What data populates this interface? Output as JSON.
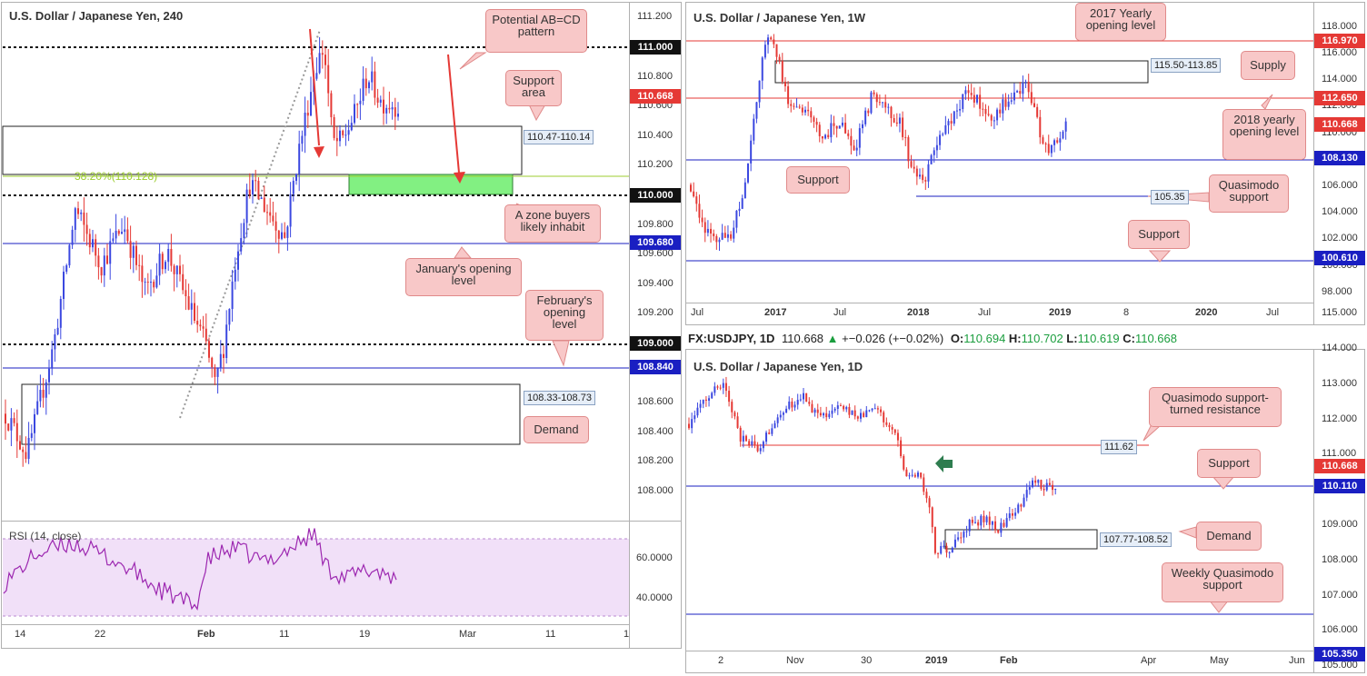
{
  "colors": {
    "bull": "#3b48e0",
    "bear": "#e53935",
    "level_red": "#e53935",
    "level_blue": "#1a1fc2",
    "level_black": "#111111",
    "fib": "#9ccc2f",
    "green_zone": "#82f082",
    "callout_fill": "#f8c8c8",
    "callout_stroke": "#e08a8a",
    "rsi_line": "#9c27b0",
    "rsi_band": "#f1e0f8",
    "up_tick": "#1b9e3e"
  },
  "panel_4h": {
    "title": "U.S. Dollar / Japanese Yen, 240",
    "y_ticks": [
      "111.200",
      "110.800",
      "110.600",
      "110.400",
      "110.200",
      "109.800",
      "109.600",
      "109.400",
      "109.200",
      "108.600",
      "108.400",
      "108.200",
      "108.000"
    ],
    "x_ticks": [
      "14",
      "22",
      "Feb",
      "11",
      "19",
      "Mar",
      "11",
      "1"
    ],
    "levels": [
      {
        "label": "111.000",
        "value": 111.0,
        "style": "dotted",
        "badge": "black"
      },
      {
        "label": "110.668",
        "value": 110.668,
        "style": "none",
        "badge": "red"
      },
      {
        "label": "110.000",
        "value": 110.0,
        "style": "dotted",
        "badge": "black"
      },
      {
        "label": "109.680",
        "value": 109.68,
        "style": "solid",
        "badge": "blue"
      },
      {
        "label": "109.000",
        "value": 109.0,
        "style": "dotted",
        "badge": "black"
      },
      {
        "label": "108.840",
        "value": 108.84,
        "style": "solid",
        "badge": "blue"
      }
    ],
    "fib_label": "38.20%(110.128)",
    "zones": [
      {
        "label": "110.47-110.14"
      },
      {
        "label": "108.33-108.73"
      }
    ],
    "callouts": [
      {
        "text": "Potential AB=CD pattern"
      },
      {
        "text": "Support area"
      },
      {
        "text": "A zone buyers likely inhabit"
      },
      {
        "text": "January's opening level"
      },
      {
        "text": "February's opening level"
      },
      {
        "text": "Demand"
      }
    ],
    "rsi": {
      "label": "RSI (14, close)",
      "ticks": [
        "60.0000",
        "40.0000"
      ]
    }
  },
  "panel_weekly": {
    "title": "U.S. Dollar / Japanese Yen, 1W",
    "y_ticks": [
      "118.000",
      "116.000",
      "114.000",
      "112.000",
      "110.000",
      "108.000",
      "106.000",
      "104.000",
      "102.000",
      "100.000",
      "98.000"
    ],
    "x_ticks": [
      "Jul",
      "2017",
      "Jul",
      "2018",
      "Jul",
      "2019",
      "8",
      "2020",
      "Jul"
    ],
    "levels": [
      {
        "label": "116.970",
        "value": 116.97,
        "color": "red"
      },
      {
        "label": "112.650",
        "value": 112.65,
        "color": "red"
      },
      {
        "label": "110.668",
        "value": 110.668,
        "color": "red"
      },
      {
        "label": "108.130",
        "value": 108.13,
        "color": "blue"
      },
      {
        "label": "100.610",
        "value": 100.61,
        "color": "blue"
      }
    ],
    "zone_label": "115.50-113.85",
    "qm_label": "105.35",
    "callouts": [
      {
        "text": "2017 Yearly opening level"
      },
      {
        "text": "Supply"
      },
      {
        "text": "2018 yearly opening level"
      },
      {
        "text": "Support"
      },
      {
        "text": "Quasimodo support"
      },
      {
        "text": "Support"
      }
    ]
  },
  "header_1d": {
    "symbol": "FX:USDJPY, 1D",
    "last": "110.668",
    "change": "+−0.026 (+−0.02%)",
    "o_label": "O:",
    "o": "110.694",
    "h_label": "H:",
    "h": "110.702",
    "l_label": "L:",
    "l": "110.619",
    "c_label": "C:",
    "c": "110.668"
  },
  "panel_daily": {
    "title": "U.S. Dollar / Japanese Yen, 1D",
    "y_ticks": [
      "115.000",
      "114.000",
      "113.000",
      "112.000",
      "111.000",
      "109.000",
      "108.000",
      "107.000",
      "106.000",
      "105.000"
    ],
    "x_ticks": [
      "2",
      "Nov",
      "30",
      "2019",
      "Feb",
      "Apr",
      "May",
      "Jun"
    ],
    "levels": [
      {
        "label": "110.668",
        "value": 110.668,
        "color": "red"
      },
      {
        "label": "110.110",
        "value": 110.11,
        "color": "blue"
      },
      {
        "label": "105.350",
        "value": 105.35,
        "color": "blue"
      }
    ],
    "resistance_label": "111.62",
    "zone_label": "107.77-108.52",
    "callouts": [
      {
        "text": "Quasimodo support-turned resistance"
      },
      {
        "text": "Support"
      },
      {
        "text": "Demand"
      },
      {
        "text": "Weekly Quasimodo support"
      }
    ]
  },
  "chart_data": [
    {
      "type": "candlestick",
      "title": "U.S. Dollar / Japanese Yen, 240",
      "timeframe": "240",
      "ylim": [
        107.8,
        111.3
      ],
      "last_price": 110.668,
      "levels": [
        111.0,
        110.0,
        109.68,
        109.0,
        108.84
      ],
      "zones": [
        [
          110.14,
          110.47
        ],
        [
          108.33,
          108.73
        ]
      ],
      "fib": {
        "ratio": "38.20%",
        "value": 110.128
      },
      "path": [
        [
          0,
          108.4
        ],
        [
          5,
          108.1
        ],
        [
          11,
          108.9
        ],
        [
          16,
          109.9
        ],
        [
          22,
          109.5
        ],
        [
          27,
          109.8
        ],
        [
          32,
          109.3
        ],
        [
          37,
          109.6
        ],
        [
          42,
          109.2
        ],
        [
          46,
          108.9
        ],
        [
          48,
          108.6
        ],
        [
          50,
          108.9
        ],
        [
          53,
          109.6
        ],
        [
          56,
          110.1
        ],
        [
          60,
          109.9
        ],
        [
          64,
          109.7
        ],
        [
          67,
          110.3
        ],
        [
          71,
          110.95
        ],
        [
          73,
          111.1
        ],
        [
          75,
          110.4
        ],
        [
          77,
          110.4
        ],
        [
          80,
          110.6
        ],
        [
          83,
          110.9
        ],
        [
          86,
          110.7
        ],
        [
          90,
          110.67
        ]
      ],
      "rsi": {
        "range": [
          30,
          70
        ],
        "ticks": [
          60,
          40
        ]
      }
    },
    {
      "type": "candlestick",
      "title": "U.S. Dollar / Japanese Yen, 1W",
      "timeframe": "1W",
      "ylim": [
        97.5,
        119
      ],
      "last_price": 110.668,
      "levels": [
        116.97,
        112.65,
        108.13,
        100.61
      ],
      "zones": [
        [
          113.85,
          115.5
        ]
      ],
      "qm_support": 105.35,
      "path": [
        [
          0,
          106
        ],
        [
          5,
          102
        ],
        [
          14,
          101.5
        ],
        [
          20,
          107
        ],
        [
          24,
          114.5
        ],
        [
          27,
          118.2
        ],
        [
          30,
          117
        ],
        [
          34,
          113
        ],
        [
          40,
          112
        ],
        [
          46,
          110
        ],
        [
          52,
          111
        ],
        [
          58,
          109
        ],
        [
          64,
          113.5
        ],
        [
          70,
          112
        ],
        [
          74,
          111
        ],
        [
          78,
          107
        ],
        [
          82,
          106
        ],
        [
          86,
          109
        ],
        [
          90,
          110.5
        ],
        [
          94,
          112.5
        ],
        [
          98,
          113.5
        ],
        [
          102,
          112.5
        ],
        [
          106,
          111.5
        ],
        [
          110,
          112.5
        ],
        [
          114,
          113.8
        ],
        [
          118,
          114
        ],
        [
          121,
          112.5
        ],
        [
          124,
          109
        ],
        [
          126,
          108.8
        ],
        [
          129,
          110
        ],
        [
          132,
          110.7
        ]
      ]
    },
    {
      "type": "candlestick",
      "title": "U.S. Dollar / Japanese Yen, 1D",
      "timeframe": "1D",
      "ylim": [
        104.4,
        115.3
      ],
      "last_price": 110.668,
      "levels": [
        110.11,
        105.35
      ],
      "resistance": 111.62,
      "zones": [
        [
          107.77,
          108.52
        ]
      ],
      "path": [
        [
          0,
          113.0
        ],
        [
          8,
          114.2
        ],
        [
          12,
          114.5
        ],
        [
          18,
          112.5
        ],
        [
          24,
          112.0
        ],
        [
          32,
          113.5
        ],
        [
          40,
          114.0
        ],
        [
          46,
          113.2
        ],
        [
          52,
          113.7
        ],
        [
          58,
          113.3
        ],
        [
          66,
          113.5
        ],
        [
          72,
          112.6
        ],
        [
          76,
          111.0
        ],
        [
          80,
          111.2
        ],
        [
          84,
          109.8
        ],
        [
          86,
          108.0
        ],
        [
          88,
          108.2
        ],
        [
          92,
          108.3
        ],
        [
          98,
          109.2
        ],
        [
          104,
          109.4
        ],
        [
          108,
          109.0
        ],
        [
          112,
          109.5
        ],
        [
          116,
          110.0
        ],
        [
          120,
          110.8
        ],
        [
          124,
          110.6
        ],
        [
          128,
          110.65
        ]
      ]
    }
  ]
}
